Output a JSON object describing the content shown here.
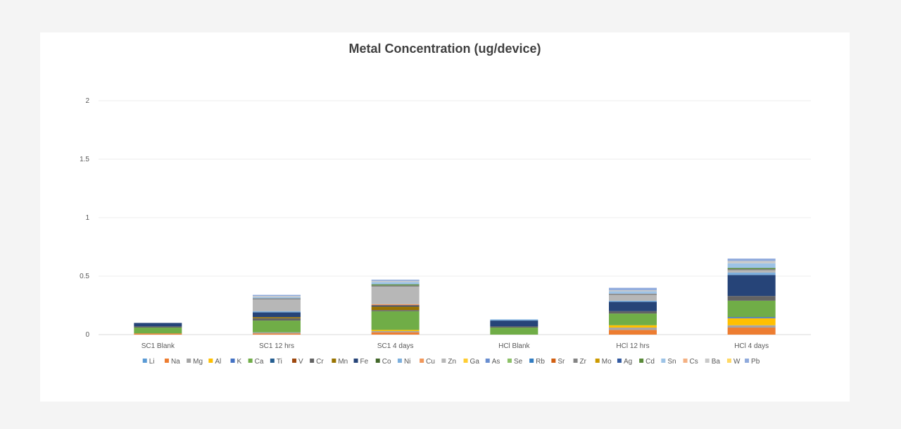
{
  "chart_data": {
    "type": "bar",
    "stacked": true,
    "title": "Metal Concentration (ug/device)",
    "xlabel": "",
    "ylabel": "",
    "ylim": [
      0,
      2
    ],
    "yticks": [
      "0",
      "0.5",
      "1",
      "1.5",
      "2"
    ],
    "ytick_values": [
      0,
      0.5,
      1,
      1.5,
      2
    ],
    "grid": true,
    "legend_position": "bottom",
    "categories": [
      "SC1 Blank",
      "SC1 12 hrs",
      "SC1 4 days",
      "HCl Blank",
      "HCl 12 hrs",
      "HCl 4 days"
    ],
    "series": [
      {
        "name": "Li",
        "color": "#5b9bd5",
        "values": [
          0.0,
          0.0,
          0.0,
          0.0,
          0.0,
          0.0
        ]
      },
      {
        "name": "Na",
        "color": "#ed7d31",
        "values": [
          0.01,
          0.01,
          0.02,
          0.0,
          0.04,
          0.06
        ]
      },
      {
        "name": "Mg",
        "color": "#a5a5a5",
        "values": [
          0.0,
          0.01,
          0.01,
          0.0,
          0.02,
          0.02
        ]
      },
      {
        "name": "Al",
        "color": "#ffc000",
        "values": [
          0.0,
          0.0,
          0.01,
          0.0,
          0.02,
          0.06
        ]
      },
      {
        "name": "K",
        "color": "#4472c4",
        "values": [
          0.0,
          0.0,
          0.0,
          0.0,
          0.0,
          0.01
        ]
      },
      {
        "name": "Ca",
        "color": "#70ad47",
        "values": [
          0.05,
          0.1,
          0.16,
          0.06,
          0.1,
          0.14
        ]
      },
      {
        "name": "Ti",
        "color": "#255e91",
        "values": [
          0.0,
          0.0,
          0.0,
          0.0,
          0.0,
          0.0
        ]
      },
      {
        "name": "V",
        "color": "#9e480e",
        "values": [
          0.0,
          0.0,
          0.0,
          0.0,
          0.0,
          0.0
        ]
      },
      {
        "name": "Cr",
        "color": "#636363",
        "values": [
          0.01,
          0.02,
          0.01,
          0.01,
          0.02,
          0.04
        ]
      },
      {
        "name": "Mn",
        "color": "#997300",
        "values": [
          0.0,
          0.01,
          0.03,
          0.0,
          0.0,
          0.0
        ]
      },
      {
        "name": "Fe",
        "color": "#264478",
        "values": [
          0.03,
          0.04,
          0.01,
          0.05,
          0.08,
          0.18
        ]
      },
      {
        "name": "Co",
        "color": "#43682b",
        "values": [
          0.0,
          0.0,
          0.0,
          0.0,
          0.0,
          0.0
        ]
      },
      {
        "name": "Ni",
        "color": "#7cafdd",
        "values": [
          0.0,
          0.01,
          0.0,
          0.01,
          0.01,
          0.02
        ]
      },
      {
        "name": "Cu",
        "color": "#f1975a",
        "values": [
          0.0,
          0.0,
          0.01,
          0.0,
          0.0,
          0.0
        ]
      },
      {
        "name": "Zn",
        "color": "#b7b7b7",
        "values": [
          0.0,
          0.1,
          0.15,
          0.0,
          0.05,
          0.02
        ]
      },
      {
        "name": "Ga",
        "color": "#ffcd33",
        "values": [
          0.0,
          0.0,
          0.0,
          0.0,
          0.0,
          0.0
        ]
      },
      {
        "name": "As",
        "color": "#698ed0",
        "values": [
          0.0,
          0.0,
          0.0,
          0.0,
          0.0,
          0.0
        ]
      },
      {
        "name": "Se",
        "color": "#8cc168",
        "values": [
          0.0,
          0.0,
          0.0,
          0.0,
          0.0,
          0.0
        ]
      },
      {
        "name": "Rb",
        "color": "#327dc2",
        "values": [
          0.0,
          0.0,
          0.0,
          0.0,
          0.0,
          0.0
        ]
      },
      {
        "name": "Sr",
        "color": "#d26012",
        "values": [
          0.0,
          0.0,
          0.0,
          0.0,
          0.0,
          0.0
        ]
      },
      {
        "name": "Zr",
        "color": "#848484",
        "values": [
          0.0,
          0.01,
          0.01,
          0.0,
          0.01,
          0.01
        ]
      },
      {
        "name": "Mo",
        "color": "#cc9a00",
        "values": [
          0.0,
          0.0,
          0.0,
          0.0,
          0.0,
          0.0
        ]
      },
      {
        "name": "Ag",
        "color": "#335aa1",
        "values": [
          0.0,
          0.0,
          0.0,
          0.0,
          0.0,
          0.0
        ]
      },
      {
        "name": "Cd",
        "color": "#5a8a39",
        "values": [
          0.0,
          0.0,
          0.01,
          0.0,
          0.0,
          0.01
        ]
      },
      {
        "name": "Sn",
        "color": "#9dc3e6",
        "values": [
          0.0,
          0.01,
          0.02,
          0.0,
          0.02,
          0.04
        ]
      },
      {
        "name": "Cs",
        "color": "#f4b183",
        "values": [
          0.0,
          0.0,
          0.0,
          0.0,
          0.0,
          0.0
        ]
      },
      {
        "name": "Ba",
        "color": "#c9c9c9",
        "values": [
          0.0,
          0.01,
          0.01,
          0.0,
          0.01,
          0.02
        ]
      },
      {
        "name": "W",
        "color": "#ffd966",
        "values": [
          0.0,
          0.0,
          0.0,
          0.0,
          0.0,
          0.0
        ]
      },
      {
        "name": "Pb",
        "color": "#8faadc",
        "values": [
          0.0,
          0.01,
          0.01,
          0.0,
          0.02,
          0.02
        ]
      }
    ]
  }
}
